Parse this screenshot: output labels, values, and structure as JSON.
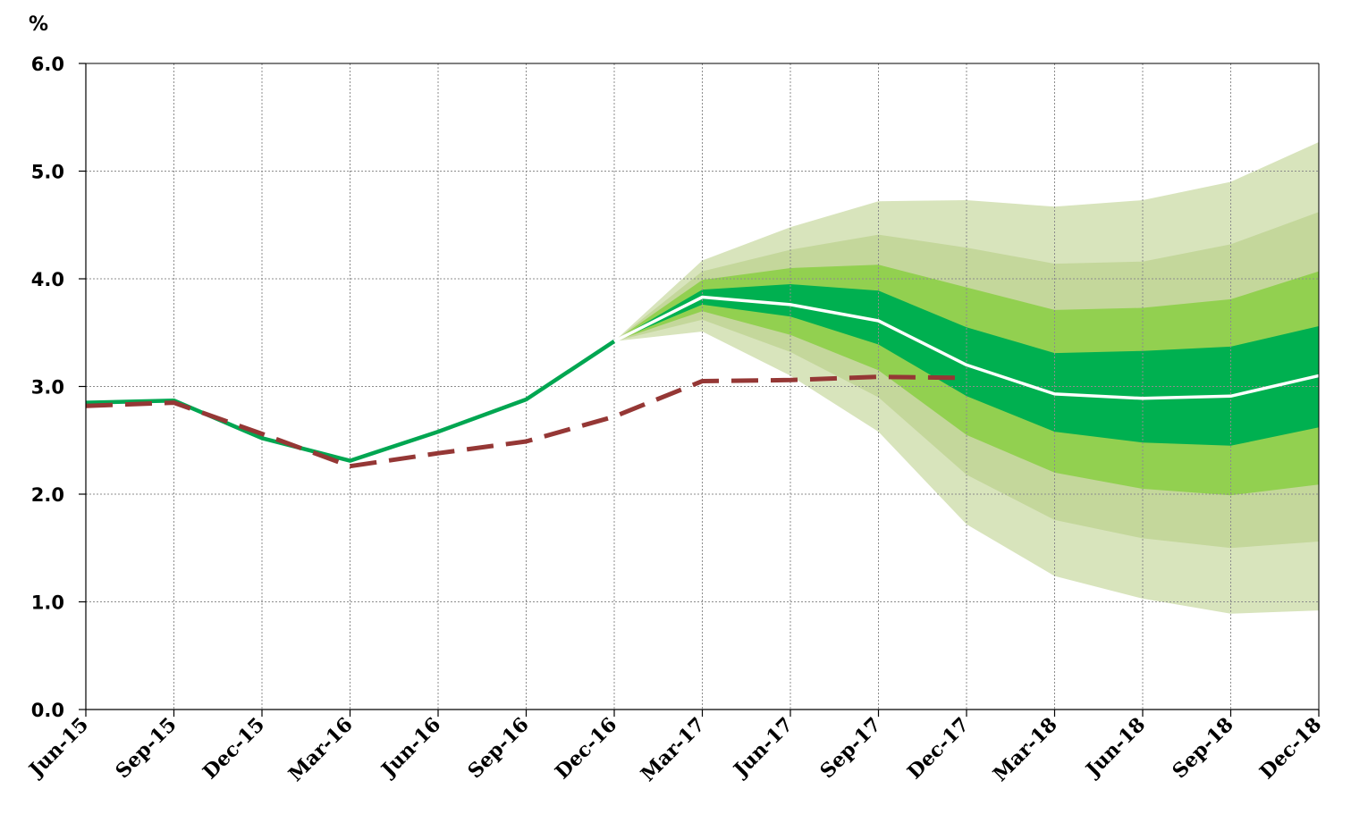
{
  "chart_data": {
    "type": "line",
    "title": "",
    "ylabel": "%",
    "xlabel": "",
    "ylim": [
      0,
      6
    ],
    "yticks": [
      "0.0",
      "1.0",
      "2.0",
      "3.0",
      "4.0",
      "5.0",
      "6.0"
    ],
    "categories": [
      "Jun-15",
      "Sep-15",
      "Dec-15",
      "Mar-16",
      "Jun-16",
      "Sep-16",
      "Dec-16",
      "Mar-17",
      "Jun-17",
      "Sep-17",
      "Dec-17",
      "Mar-18",
      "Jun-18",
      "Sep-18",
      "Dec-18"
    ],
    "grid": true,
    "colors": {
      "actual": "#00a651",
      "central": "#ffffff",
      "previous": "#953735",
      "band_outer": "#d8e4bc",
      "band_mid_outer": "#c4d79b",
      "band_mid": "#92d050",
      "band_inner": "#00b050"
    },
    "series": [
      {
        "role": "actual",
        "style": "solid",
        "values": [
          2.85,
          2.87,
          2.52,
          2.31,
          2.58,
          2.88,
          3.42,
          null,
          null,
          null,
          null,
          null,
          null,
          null,
          null
        ]
      },
      {
        "role": "central-projection",
        "style": "solid",
        "values": [
          null,
          null,
          null,
          null,
          null,
          null,
          3.42,
          3.83,
          3.76,
          3.61,
          3.2,
          2.93,
          2.89,
          2.91,
          3.1
        ]
      },
      {
        "role": "previous-projection",
        "style": "dashed",
        "values": [
          2.82,
          2.85,
          2.56,
          2.26,
          2.38,
          2.49,
          2.72,
          3.05,
          3.06,
          3.09,
          3.08,
          null,
          null,
          null,
          null
        ]
      }
    ],
    "fan_bands": {
      "start_index": 6,
      "x_index": [
        6,
        7,
        8,
        9,
        10,
        11,
        12,
        13,
        14
      ],
      "band_outer": {
        "upper": [
          3.42,
          4.17,
          4.48,
          4.72,
          4.73,
          4.67,
          4.73,
          4.9,
          5.27
        ],
        "lower": [
          3.42,
          3.51,
          3.1,
          2.58,
          1.72,
          1.24,
          1.03,
          0.89,
          0.92
        ]
      },
      "band_mid_outer": {
        "upper": [
          3.42,
          4.07,
          4.27,
          4.41,
          4.29,
          4.14,
          4.16,
          4.32,
          4.62
        ],
        "lower": [
          3.42,
          3.62,
          3.32,
          2.9,
          2.18,
          1.76,
          1.59,
          1.5,
          1.56
        ]
      },
      "band_mid": {
        "upper": [
          3.42,
          3.99,
          4.1,
          4.13,
          3.92,
          3.71,
          3.73,
          3.81,
          4.07
        ],
        "lower": [
          3.42,
          3.7,
          3.48,
          3.15,
          2.55,
          2.2,
          2.05,
          1.99,
          2.09
        ]
      },
      "band_inner": {
        "upper": [
          3.42,
          3.9,
          3.95,
          3.89,
          3.55,
          3.31,
          3.33,
          3.37,
          3.56
        ],
        "lower": [
          3.42,
          3.76,
          3.65,
          3.39,
          2.91,
          2.58,
          2.48,
          2.45,
          2.62
        ]
      }
    }
  }
}
